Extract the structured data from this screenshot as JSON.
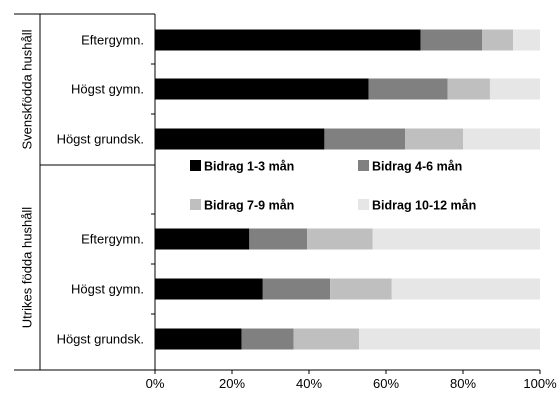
{
  "chart_data": {
    "type": "bar",
    "orientation": "horizontal",
    "stacked": true,
    "groups": [
      {
        "name": "Svenskfödda hushåll",
        "categories": [
          "Eftergymn.",
          "Högst gymn.",
          "Högst grundsk."
        ]
      },
      {
        "name": "Utrikes födda hushåll",
        "categories": [
          "Eftergymn.",
          "Högst gymn.",
          "Högst grundsk."
        ]
      }
    ],
    "series": [
      {
        "name": "Bidrag 1-3 mån",
        "color": "#000000",
        "values": [
          69,
          55.5,
          44,
          24.5,
          28,
          22.5
        ]
      },
      {
        "name": "Bidrag 4-6 mån",
        "color": "#808080",
        "values": [
          16,
          20.5,
          21,
          15,
          17.5,
          13.5
        ]
      },
      {
        "name": "Bidrag 7-9 mån",
        "color": "#bfbfbf",
        "values": [
          8,
          11,
          15,
          17,
          16,
          17
        ]
      },
      {
        "name": "Bidrag 10-12 mån",
        "color": "#e6e6e6",
        "values": [
          7,
          13,
          20,
          43.5,
          38.5,
          47
        ]
      }
    ],
    "xlim": [
      0,
      100
    ],
    "xticks": [
      0,
      20,
      40,
      60,
      80,
      100
    ],
    "xtick_labels": [
      "0%",
      "20%",
      "40%",
      "60%",
      "80%",
      "100%"
    ],
    "legend_placement": "inside, between groups",
    "grid": false
  }
}
